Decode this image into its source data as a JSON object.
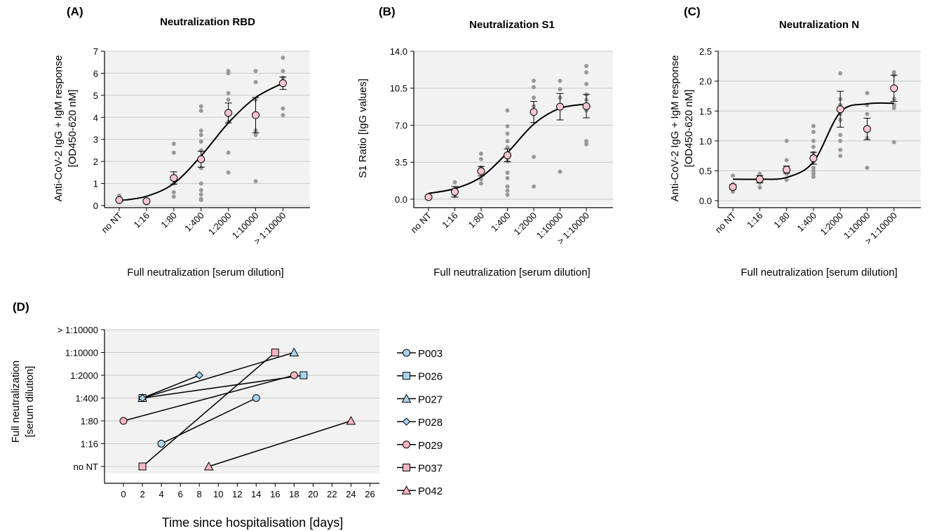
{
  "chart_data": [
    {
      "type": "scatter",
      "panel": "(A)",
      "title": "Neutralization RBD",
      "xlabel": "Full neutralization [serum dilution]",
      "ylabel": "Anti-CoV-2 IgG + IgM response",
      "ylabel2": "[OD450-620 nM]",
      "categories": [
        "no NT",
        "1:16",
        "1:80",
        "1:400",
        "1:2000",
        "1:10000",
        "> 1:10000"
      ],
      "ylim": [
        0,
        7
      ],
      "yticks": [
        "0",
        "1",
        "2",
        "3",
        "4",
        "5",
        "6",
        "7"
      ],
      "grid": true,
      "points": [
        [
          0,
          0.2
        ],
        [
          0,
          0.3
        ],
        [
          0,
          0.45
        ],
        [
          0,
          0.15
        ],
        [
          1,
          0.1
        ],
        [
          1,
          0.2
        ],
        [
          2,
          2.8
        ],
        [
          2,
          2.4
        ],
        [
          2,
          1.2
        ],
        [
          2,
          1.0
        ],
        [
          2,
          0.6
        ],
        [
          2,
          0.4
        ],
        [
          3,
          4.5
        ],
        [
          3,
          4.3
        ],
        [
          3,
          3.4
        ],
        [
          3,
          3.2
        ],
        [
          3,
          2.9
        ],
        [
          3,
          2.5
        ],
        [
          3,
          2.2
        ],
        [
          3,
          1.7
        ],
        [
          3,
          1.0
        ],
        [
          3,
          0.7
        ],
        [
          3,
          0.5
        ],
        [
          3,
          0.3
        ],
        [
          3,
          0.25
        ],
        [
          4,
          6.1
        ],
        [
          4,
          6.0
        ],
        [
          4,
          5.1
        ],
        [
          4,
          4.8
        ],
        [
          4,
          4.3
        ],
        [
          4,
          3.8
        ],
        [
          4,
          2.4
        ],
        [
          4,
          1.5
        ],
        [
          5,
          6.1
        ],
        [
          5,
          5.6
        ],
        [
          5,
          4.8
        ],
        [
          5,
          3.4
        ],
        [
          5,
          3.2
        ],
        [
          5,
          1.1
        ],
        [
          6,
          6.7
        ],
        [
          6,
          6.1
        ],
        [
          6,
          5.8
        ],
        [
          6,
          5.6
        ],
        [
          6,
          4.4
        ],
        [
          6,
          4.1
        ]
      ],
      "means": [
        0.25,
        0.2,
        1.25,
        2.1,
        4.2,
        4.1,
        5.55
      ],
      "errors": [
        0.07,
        0.07,
        0.28,
        0.36,
        0.45,
        0.8,
        0.28
      ],
      "fit": [
        0.22,
        0.42,
        1.0,
        2.25,
        3.75,
        4.9,
        5.55
      ]
    },
    {
      "type": "scatter",
      "panel": "(B)",
      "title": "Neutralization S1",
      "xlabel": "Full neutralization [serum dilution]",
      "ylabel": "S1 Ratio [IgG values]",
      "categories": [
        "no NT",
        "1:16",
        "1:80",
        "1:400",
        "1:2000",
        "1:10000",
        "> 1:10000"
      ],
      "ylim": [
        -0.6,
        14
      ],
      "yticks": [
        "0.0",
        "3.5",
        "7.0",
        "10.5",
        "14.0"
      ],
      "grid": true,
      "points": [
        [
          0,
          0.2
        ],
        [
          0,
          0.3
        ],
        [
          1,
          1.6
        ],
        [
          1,
          1.0
        ],
        [
          1,
          0.5
        ],
        [
          1,
          0.3
        ],
        [
          2,
          4.3
        ],
        [
          2,
          3.8
        ],
        [
          2,
          3.0
        ],
        [
          2,
          2.6
        ],
        [
          2,
          1.9
        ],
        [
          2,
          1.5
        ],
        [
          3,
          8.4
        ],
        [
          3,
          6.9
        ],
        [
          3,
          6.2
        ],
        [
          3,
          5.5
        ],
        [
          3,
          4.9
        ],
        [
          3,
          4.2
        ],
        [
          3,
          3.6
        ],
        [
          3,
          2.5
        ],
        [
          3,
          2.0
        ],
        [
          3,
          1.2
        ],
        [
          3,
          0.8
        ],
        [
          3,
          0.4
        ],
        [
          4,
          11.2
        ],
        [
          4,
          10.6
        ],
        [
          4,
          9.6
        ],
        [
          4,
          8.8
        ],
        [
          4,
          8.1
        ],
        [
          4,
          4.0
        ],
        [
          4,
          1.2
        ],
        [
          5,
          11.2
        ],
        [
          5,
          10.4
        ],
        [
          5,
          9.6
        ],
        [
          5,
          8.7
        ],
        [
          5,
          2.6
        ],
        [
          6,
          12.6
        ],
        [
          6,
          12.0
        ],
        [
          6,
          10.9
        ],
        [
          6,
          9.9
        ],
        [
          6,
          9.4
        ],
        [
          6,
          8.4
        ],
        [
          6,
          5.5
        ],
        [
          6,
          5.2
        ]
      ],
      "means": [
        0.2,
        0.7,
        2.65,
        4.15,
        8.25,
        8.75,
        8.8
      ],
      "errors": [
        0.1,
        0.5,
        0.45,
        0.6,
        1.0,
        1.25,
        1.1
      ],
      "fit": [
        0.55,
        1.0,
        2.1,
        4.4,
        7.1,
        8.6,
        9.0
      ]
    },
    {
      "type": "scatter",
      "panel": "(C)",
      "title": "Neutralization N",
      "xlabel": "Full neutralization [serum dilution]",
      "ylabel": "Anti-CoV-2 IgG + IgM response",
      "ylabel2": "[OD450-620 nM]",
      "categories": [
        "no NT",
        "1:16",
        "1:80",
        "1:400",
        "1:2000",
        "1:10000",
        "> 1:10000"
      ],
      "ylim": [
        -0.08,
        2.5
      ],
      "yticks": [
        "0.0",
        "0.5",
        "1.0",
        "1.5",
        "2.0",
        "2.5"
      ],
      "grid": true,
      "points": [
        [
          0,
          0.42
        ],
        [
          0,
          0.28
        ],
        [
          0,
          0.2
        ],
        [
          0,
          0.15
        ],
        [
          1,
          0.45
        ],
        [
          1,
          0.35
        ],
        [
          1,
          0.3
        ],
        [
          1,
          0.22
        ],
        [
          2,
          1.0
        ],
        [
          2,
          0.68
        ],
        [
          2,
          0.55
        ],
        [
          2,
          0.45
        ],
        [
          2,
          0.35
        ],
        [
          3,
          1.25
        ],
        [
          3,
          1.15
        ],
        [
          3,
          1.0
        ],
        [
          3,
          0.9
        ],
        [
          3,
          0.8
        ],
        [
          3,
          0.72
        ],
        [
          3,
          0.65
        ],
        [
          3,
          0.55
        ],
        [
          3,
          0.5
        ],
        [
          3,
          0.45
        ],
        [
          3,
          0.4
        ],
        [
          4,
          2.13
        ],
        [
          4,
          1.7
        ],
        [
          4,
          1.6
        ],
        [
          4,
          1.45
        ],
        [
          4,
          1.35
        ],
        [
          4,
          1.1
        ],
        [
          4,
          1.0
        ],
        [
          4,
          0.85
        ],
        [
          4,
          0.75
        ],
        [
          5,
          1.8
        ],
        [
          5,
          1.6
        ],
        [
          5,
          1.45
        ],
        [
          5,
          1.05
        ],
        [
          5,
          0.55
        ],
        [
          6,
          2.15
        ],
        [
          6,
          2.1
        ],
        [
          6,
          1.7
        ],
        [
          6,
          1.6
        ],
        [
          6,
          1.55
        ],
        [
          6,
          0.98
        ]
      ],
      "means": [
        0.23,
        0.36,
        0.52,
        0.71,
        1.53,
        1.2,
        1.88
      ],
      "errors": [
        0.04,
        0.06,
        0.06,
        0.1,
        0.3,
        0.18,
        0.22
      ],
      "fit": [
        0.36,
        0.36,
        0.39,
        0.65,
        1.48,
        1.62,
        1.63
      ]
    },
    {
      "type": "line",
      "panel": "(D)",
      "xlabel": "Time since hospitalisation [days]",
      "ylabel": "Full neutralization",
      "ylabel2": "[serum dilution]",
      "xlim": [
        -2,
        27
      ],
      "xticks": [
        0,
        2,
        4,
        6,
        8,
        10,
        12,
        14,
        16,
        18,
        20,
        22,
        24,
        26
      ],
      "ycategories": [
        "no NT",
        "1:16",
        "1:80",
        "1:400",
        "1:2000",
        "1:10000",
        "> 1:10000"
      ],
      "grid": true,
      "legend_position": "right",
      "series": [
        {
          "name": "P003",
          "marker": "circle",
          "fill": "#a9d4f0",
          "points": [
            [
              4,
              1
            ],
            [
              14,
              3
            ]
          ]
        },
        {
          "name": "P026",
          "marker": "square",
          "fill": "#a9d4f0",
          "points": [
            [
              2,
              3
            ],
            [
              19,
              4
            ]
          ]
        },
        {
          "name": "P027",
          "marker": "triangle",
          "fill": "#a9d4f0",
          "points": [
            [
              2,
              3
            ],
            [
              18,
              5
            ]
          ]
        },
        {
          "name": "P028",
          "marker": "diamond",
          "fill": "#a9d4f0",
          "points": [
            [
              2,
              3
            ],
            [
              8,
              4
            ]
          ]
        },
        {
          "name": "P029",
          "marker": "circle",
          "fill": "#f5b5c0",
          "points": [
            [
              0,
              2
            ],
            [
              18,
              4
            ]
          ]
        },
        {
          "name": "P037",
          "marker": "square",
          "fill": "#f5b5c0",
          "points": [
            [
              2,
              0
            ],
            [
              16,
              5
            ]
          ]
        },
        {
          "name": "P042",
          "marker": "triangle",
          "fill": "#f5b5c0",
          "points": [
            [
              9,
              0
            ],
            [
              24,
              2
            ]
          ]
        }
      ]
    }
  ],
  "colors": {
    "plot_bg": "#f2f2f2",
    "grid": "#c8c8c8",
    "dots": "#999999",
    "mean_fill": "#f7c6d0",
    "pink": "#f5b5c0",
    "blue": "#a9d4f0"
  }
}
